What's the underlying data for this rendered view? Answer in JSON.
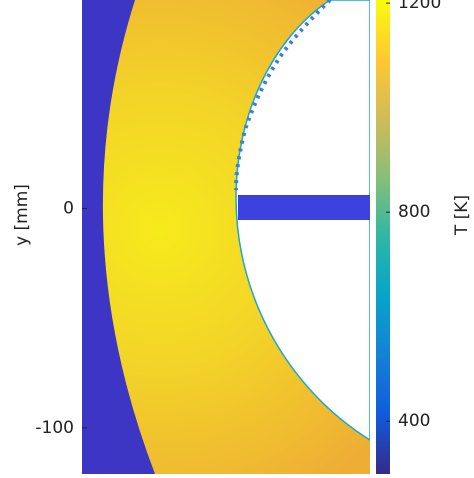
{
  "chart_data": {
    "type": "field",
    "ylabel": "y [mm]",
    "ylim": [
      -121,
      95
    ],
    "yticks": [
      -100,
      0
    ],
    "colorbar_label": "T [K]",
    "clim": [
      299,
      1206
    ],
    "cticks": [
      400,
      800,
      1200
    ],
    "colormap": [
      "#352a87",
      "#0f5cdd",
      "#1481d6",
      "#06a4ca",
      "#2eb7a4",
      "#87bf77",
      "#d1bb59",
      "#fec832",
      "#f9fb0e"
    ]
  }
}
